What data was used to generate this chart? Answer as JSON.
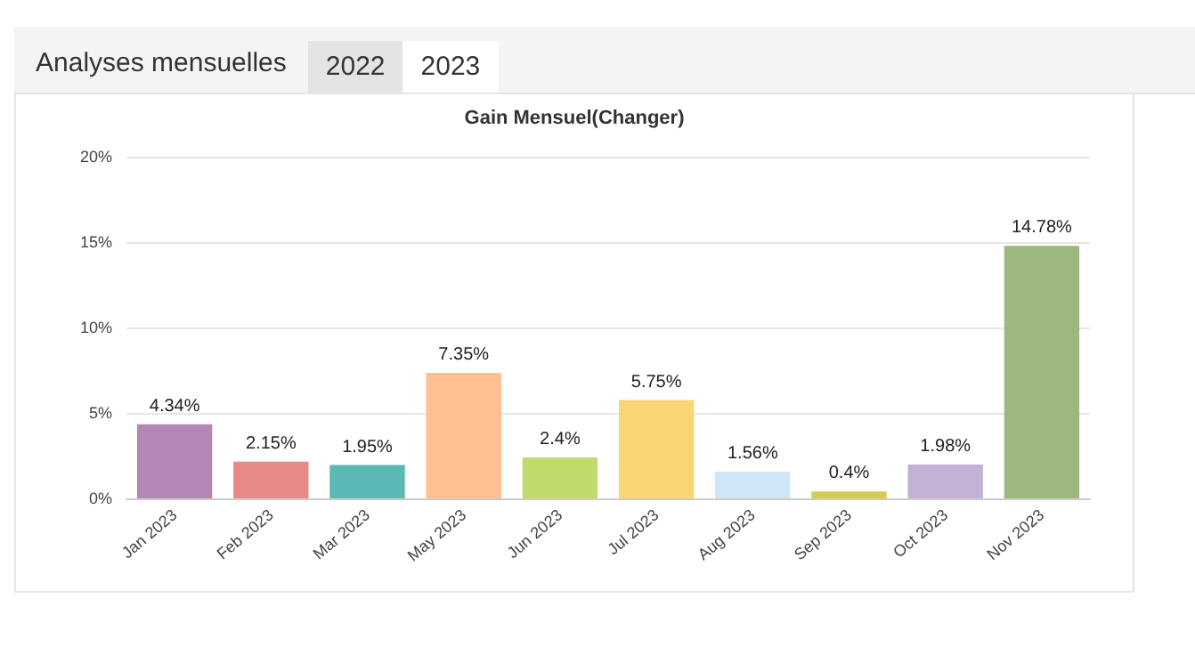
{
  "chart_data": {
    "type": "bar",
    "title": "Gain Mensuel(Changer)",
    "annotations": [
      "Analyses mensuelles",
      "2022",
      "2023"
    ],
    "categories": [
      "Jan 2023",
      "Feb 2023",
      "Mar 2023",
      "May 2023",
      "Jun 2023",
      "Jul 2023",
      "Aug 2023",
      "Sep 2023",
      "Oct 2023",
      "Nov 2023"
    ],
    "values": [
      4.34,
      2.15,
      1.95,
      7.35,
      2.4,
      5.75,
      1.56,
      0.4,
      1.98,
      14.78
    ],
    "value_labels": [
      "4.34%",
      "2.15%",
      "1.95%",
      "7.35%",
      "2.4%",
      "5.75%",
      "1.56%",
      "0.4%",
      "1.98%",
      "14.78%"
    ],
    "colors": [
      "#b486b6",
      "#e88b88",
      "#5bb8b4",
      "#ffbf91",
      "#bedb6c",
      "#f8d673",
      "#cfe6f7",
      "#d6cb4e",
      "#c3b1d6",
      "#9db87e"
    ],
    "ylim": [
      0,
      20
    ],
    "yticks": [
      {
        "value": 0,
        "label": "0%"
      },
      {
        "value": 5,
        "label": "5%"
      },
      {
        "value": 10,
        "label": "10%"
      },
      {
        "value": 15,
        "label": "15%"
      },
      {
        "value": 20,
        "label": "20%"
      }
    ],
    "grid": "y"
  }
}
